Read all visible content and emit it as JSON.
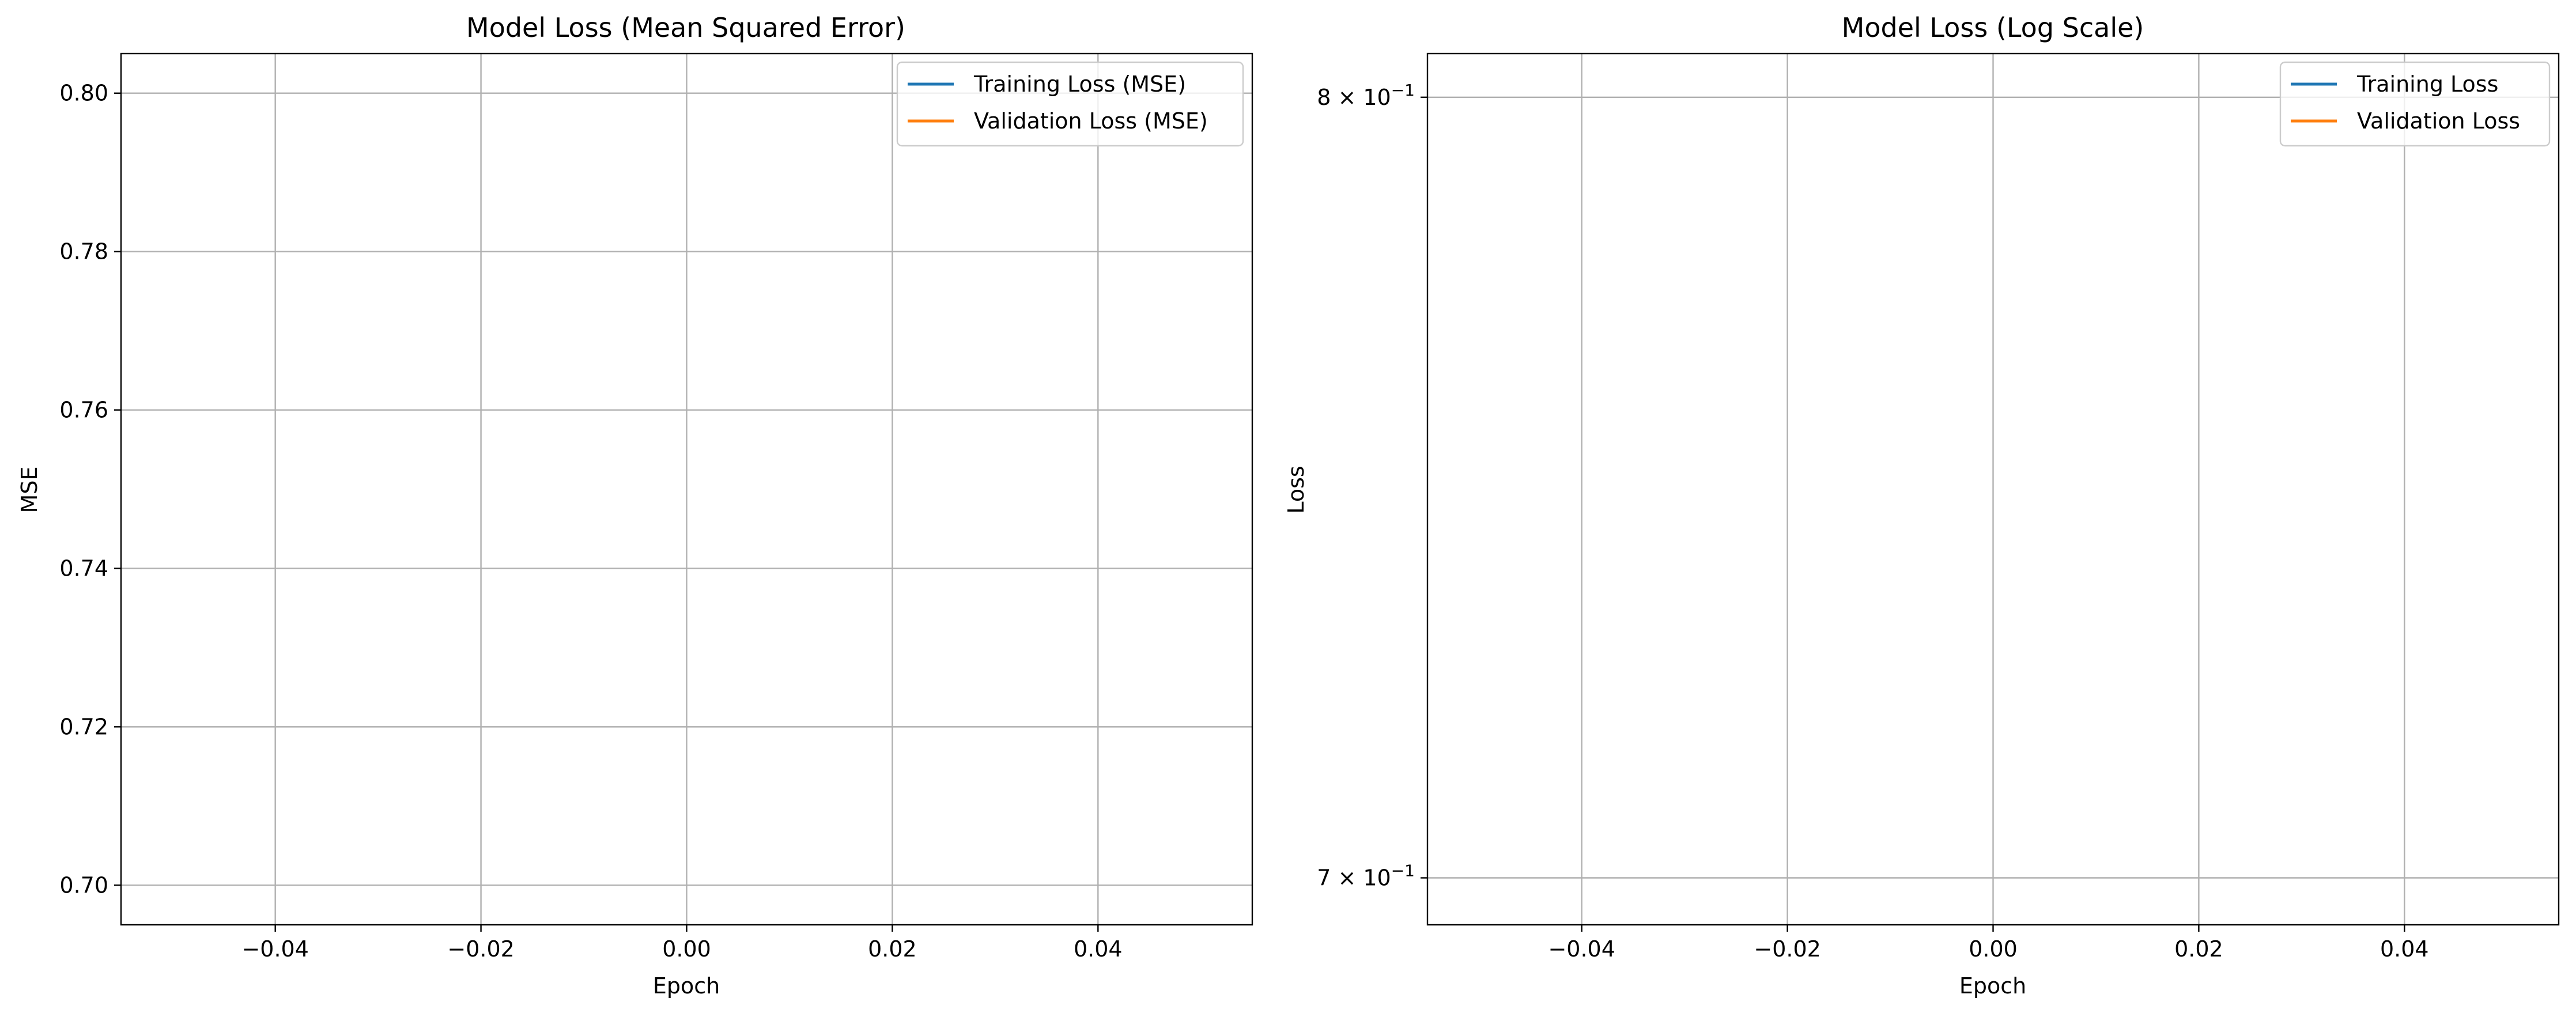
{
  "chart_data": [
    {
      "type": "line",
      "title": "Model Loss (Mean Squared Error)",
      "xlabel": "Epoch",
      "ylabel": "MSE",
      "xlim": [
        -0.055,
        0.055
      ],
      "ylim": [
        0.695,
        0.805
      ],
      "yscale": "linear",
      "xticks": [
        -0.04,
        -0.02,
        0.0,
        0.02,
        0.04
      ],
      "xtick_labels": [
        "−0.04",
        "−0.02",
        "0.00",
        "0.02",
        "0.04"
      ],
      "yticks": [
        0.7,
        0.72,
        0.74,
        0.76,
        0.78,
        0.8
      ],
      "ytick_labels": [
        "0.70",
        "0.72",
        "0.74",
        "0.76",
        "0.78",
        "0.80"
      ],
      "grid": true,
      "legend_position": "top-right",
      "series": [
        {
          "name": "Training Loss (MSE)",
          "color": "#1f77b4",
          "x": [],
          "y": []
        },
        {
          "name": "Validation Loss (MSE)",
          "color": "#ff7f0e",
          "x": [],
          "y": []
        }
      ]
    },
    {
      "type": "line",
      "title": "Model Loss (Log Scale)",
      "xlabel": "Epoch",
      "ylabel": "Loss",
      "xlim": [
        -0.055,
        0.055
      ],
      "ylim": [
        0.6944,
        0.806
      ],
      "yscale": "log",
      "xticks": [
        -0.04,
        -0.02,
        0.0,
        0.02,
        0.04
      ],
      "xtick_labels": [
        "−0.04",
        "−0.02",
        "0.00",
        "0.02",
        "0.04"
      ],
      "yticks": [
        0.7,
        0.8
      ],
      "ytick_labels": [
        {
          "mantissa": "7",
          "base": "10",
          "exp": "−1"
        },
        {
          "mantissa": "8",
          "base": "10",
          "exp": "−1"
        }
      ],
      "grid": true,
      "legend_position": "top-right",
      "series": [
        {
          "name": "Training Loss",
          "color": "#1f77b4",
          "x": [],
          "y": []
        },
        {
          "name": "Validation Loss",
          "color": "#ff7f0e",
          "x": [],
          "y": []
        }
      ]
    }
  ]
}
